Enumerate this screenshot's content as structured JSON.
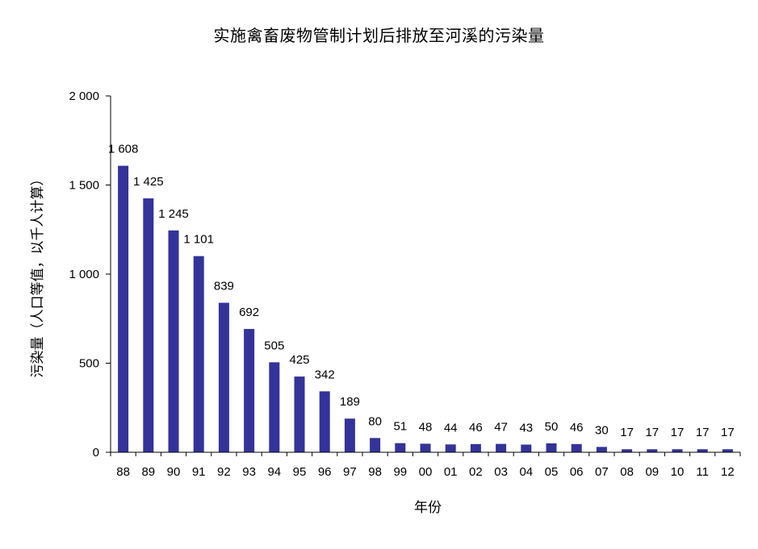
{
  "chart_data": {
    "type": "bar",
    "title": "实施禽畜废物管制计划后排放至河溪的污染量",
    "xlabel": "年份",
    "ylabel": "污染量（人口等值，以千人计算）",
    "categories": [
      "88",
      "89",
      "90",
      "91",
      "92",
      "93",
      "94",
      "95",
      "96",
      "97",
      "98",
      "99",
      "00",
      "01",
      "02",
      "03",
      "04",
      "05",
      "06",
      "07",
      "08",
      "09",
      "10",
      "11",
      "12"
    ],
    "values": [
      1608,
      1425,
      1245,
      1101,
      839,
      692,
      505,
      425,
      342,
      189,
      80,
      51,
      48,
      44,
      46,
      47,
      43,
      50,
      46,
      30,
      17,
      17,
      17,
      17,
      17
    ],
    "value_labels": [
      "1 608",
      "1 425",
      "1 245",
      "1 101",
      "839",
      "692",
      "505",
      "425",
      "342",
      "189",
      "80",
      "51",
      "48",
      "44",
      "46",
      "47",
      "43",
      "50",
      "46",
      "30",
      "17",
      "17",
      "17",
      "17",
      "17"
    ],
    "ylim": [
      0,
      2000
    ],
    "yticks": [
      0,
      500,
      1000,
      1500,
      2000
    ],
    "ytick_labels": [
      "0",
      "500",
      "1 000",
      "1 500",
      "2 000"
    ],
    "grid": false,
    "legend": "none",
    "bar_color": "#333399"
  }
}
